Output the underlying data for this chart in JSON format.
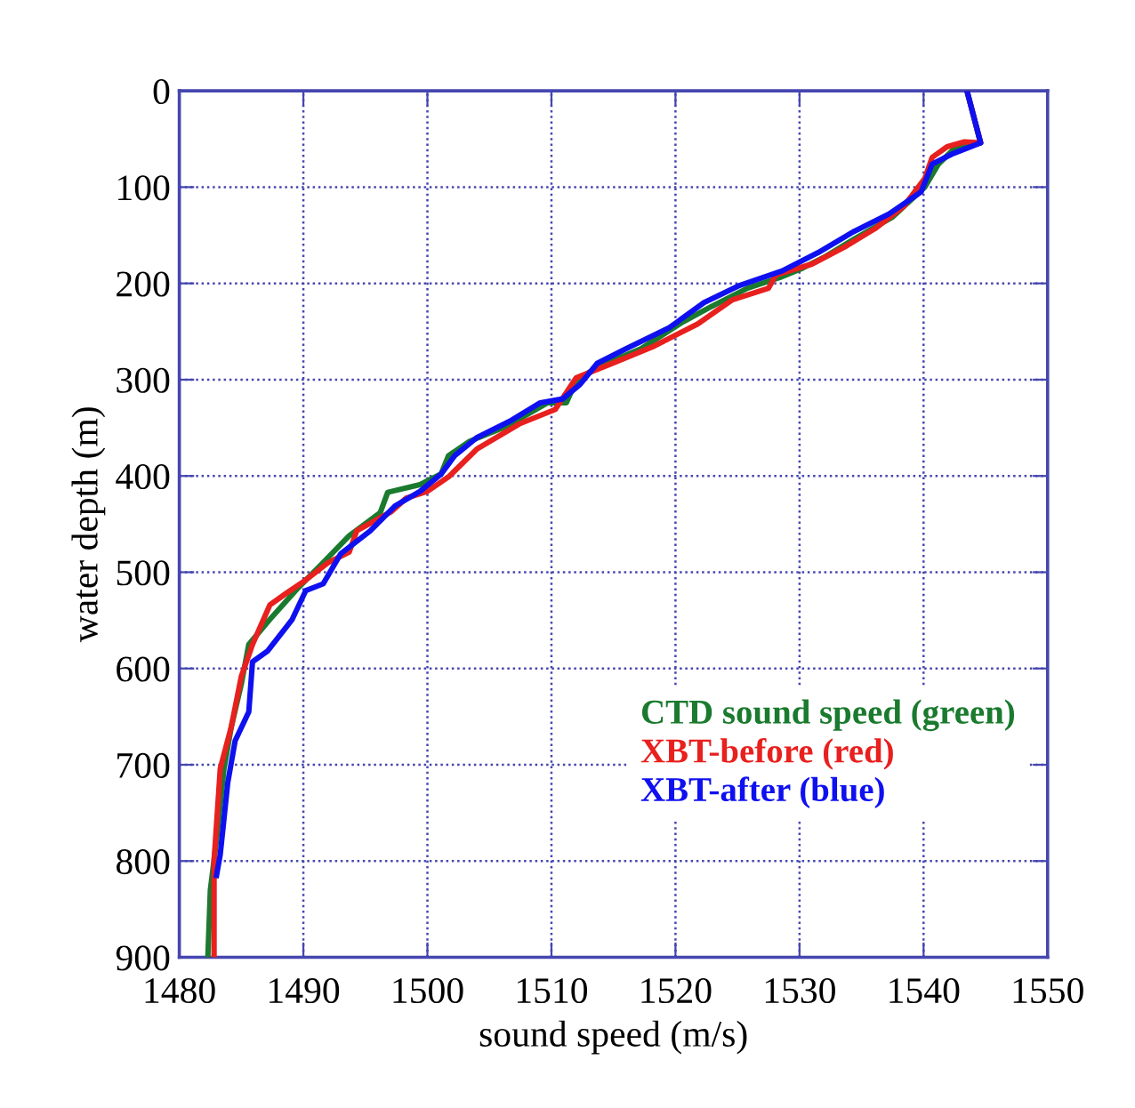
{
  "chart_data": {
    "type": "line",
    "xlabel": "sound speed (m/s)",
    "ylabel": "water depth (m)",
    "xlim": [
      1480,
      1550
    ],
    "xticks": [
      1480,
      1490,
      1500,
      1510,
      1520,
      1530,
      1540,
      1550
    ],
    "ylim": [
      900,
      0
    ],
    "yticks": [
      0,
      100,
      200,
      300,
      400,
      500,
      600,
      700,
      800,
      900
    ],
    "grid": true,
    "legend": "bottom right",
    "line_style": "solid",
    "series": [
      {
        "name": "CTD sound speed (green)",
        "color": "#1a7a2e",
        "values": [
          0,
          54,
          61,
          76,
          100,
          131,
          154,
          172,
          185,
          194,
          205,
          224,
          240,
          268,
          287,
          301,
          324,
          324,
          349,
          364,
          379,
          398,
          409,
          417,
          438,
          462,
          490,
          516,
          549,
          575,
          616,
          660,
          704,
          778,
          830,
          900
        ],
        "x": [
          1543.5,
          1544.6,
          1542.4,
          1541.2,
          1540.1,
          1537.5,
          1534.4,
          1532.1,
          1530.1,
          1528.4,
          1525.8,
          1522.9,
          1520.6,
          1517.2,
          1513.7,
          1512.0,
          1511.2,
          1509.7,
          1506.3,
          1503.4,
          1501.7,
          1501.1,
          1499.4,
          1496.8,
          1496.2,
          1493.7,
          1491.6,
          1489.6,
          1487.3,
          1485.6,
          1485.0,
          1484.2,
          1483.6,
          1483.0,
          1482.5,
          1482.3
        ]
      },
      {
        "name": "XBT-before (red)",
        "color": "#e8201e",
        "values": [
          0,
          54,
          53,
          58,
          69,
          91,
          120,
          143,
          161,
          180,
          191,
          205,
          217,
          242,
          265,
          283,
          298,
          331,
          346,
          372,
          401,
          416,
          423,
          437,
          457,
          479,
          490,
          508,
          523,
          534,
          575,
          608,
          660,
          704,
          800,
          900
        ],
        "x": [
          1543.5,
          1544.6,
          1543.3,
          1541.9,
          1540.7,
          1540.1,
          1538.4,
          1536.1,
          1533.8,
          1531.0,
          1528.1,
          1527.5,
          1524.6,
          1521.8,
          1518.3,
          1514.9,
          1512.0,
          1510.3,
          1507.4,
          1504.0,
          1501.7,
          1500.0,
          1498.3,
          1497.1,
          1494.3,
          1493.7,
          1492.0,
          1490.2,
          1488.5,
          1487.3,
          1485.9,
          1485.0,
          1484.2,
          1483.3,
          1482.8,
          1482.8
        ]
      },
      {
        "name": "XBT-after (blue)",
        "color": "#0f10f0",
        "values": [
          0,
          54,
          65,
          76,
          105,
          128,
          146,
          168,
          187,
          202,
          220,
          246,
          268,
          283,
          305,
          320,
          324,
          342,
          360,
          379,
          398,
          416,
          431,
          457,
          481,
          512,
          519,
          549,
          582,
          593,
          645,
          675,
          719,
          793,
          815
        ],
        "x": [
          1543.5,
          1544.6,
          1542.4,
          1540.7,
          1539.8,
          1537.2,
          1534.4,
          1531.5,
          1528.6,
          1525.2,
          1522.3,
          1519.5,
          1516.0,
          1513.7,
          1512.3,
          1510.9,
          1509.1,
          1506.8,
          1504.0,
          1502.2,
          1501.1,
          1499.4,
          1497.4,
          1495.4,
          1493.0,
          1491.6,
          1490.2,
          1489.1,
          1487.1,
          1485.9,
          1485.6,
          1484.5,
          1483.9,
          1483.3,
          1483.0
        ]
      }
    ]
  }
}
